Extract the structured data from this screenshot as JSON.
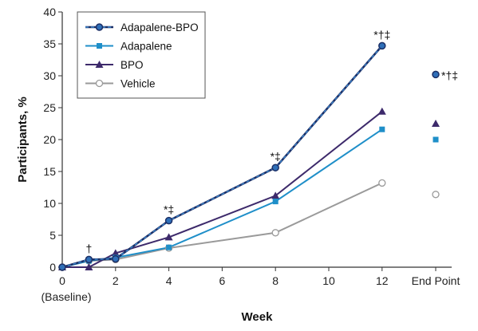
{
  "chart_data": {
    "type": "line",
    "title": "",
    "xlabel": "Week",
    "ylabel": "Participants, %",
    "ylim": [
      0,
      40
    ],
    "yticks": [
      0,
      5,
      10,
      15,
      20,
      25,
      30,
      35,
      40
    ],
    "xticks": [
      "0",
      "2",
      "4",
      "6",
      "8",
      "10",
      "12",
      "End Point"
    ],
    "x_baseline_label": "(Baseline)",
    "legend_position": "top-left",
    "grid": false,
    "series": [
      {
        "name": "Adapalene-BPO",
        "marker": "circle-filled",
        "color": "#2c4a8c",
        "points": [
          [
            0,
            0
          ],
          [
            1,
            1.2
          ],
          [
            2,
            1.3
          ],
          [
            4,
            7.3
          ],
          [
            8,
            15.6
          ],
          [
            12,
            34.7
          ]
        ],
        "end_point": 30.2
      },
      {
        "name": "Adapalene",
        "marker": "square",
        "color": "#1f8fc9",
        "points": [
          [
            0,
            0
          ],
          [
            1,
            1.0
          ],
          [
            2,
            1.5
          ],
          [
            4,
            3.1
          ],
          [
            8,
            10.3
          ],
          [
            12,
            21.6
          ]
        ],
        "end_point": 20.0
      },
      {
        "name": "BPO",
        "marker": "triangle",
        "color": "#3d2a6b",
        "points": [
          [
            0,
            0
          ],
          [
            1,
            0
          ],
          [
            2,
            2.2
          ],
          [
            4,
            4.7
          ],
          [
            8,
            11.2
          ],
          [
            12,
            24.4
          ]
        ],
        "end_point": 22.5
      },
      {
        "name": "Vehicle",
        "marker": "circle-open",
        "color": "#9a9a9a",
        "points": [
          [
            0,
            0
          ],
          [
            1,
            1.0
          ],
          [
            2,
            1.2
          ],
          [
            4,
            3.0
          ],
          [
            8,
            5.4
          ],
          [
            12,
            13.2
          ]
        ],
        "end_point": 11.4
      }
    ],
    "annotations": [
      {
        "text": "†",
        "x": 1,
        "y": 1.2
      },
      {
        "text": "*‡",
        "x": 4,
        "y": 7.3
      },
      {
        "text": "*‡",
        "x": 8,
        "y": 15.6
      },
      {
        "text": "*†‡",
        "x": 12,
        "y": 34.7
      },
      {
        "text": "*†‡",
        "x": "End Point",
        "y": 30.2
      }
    ]
  }
}
